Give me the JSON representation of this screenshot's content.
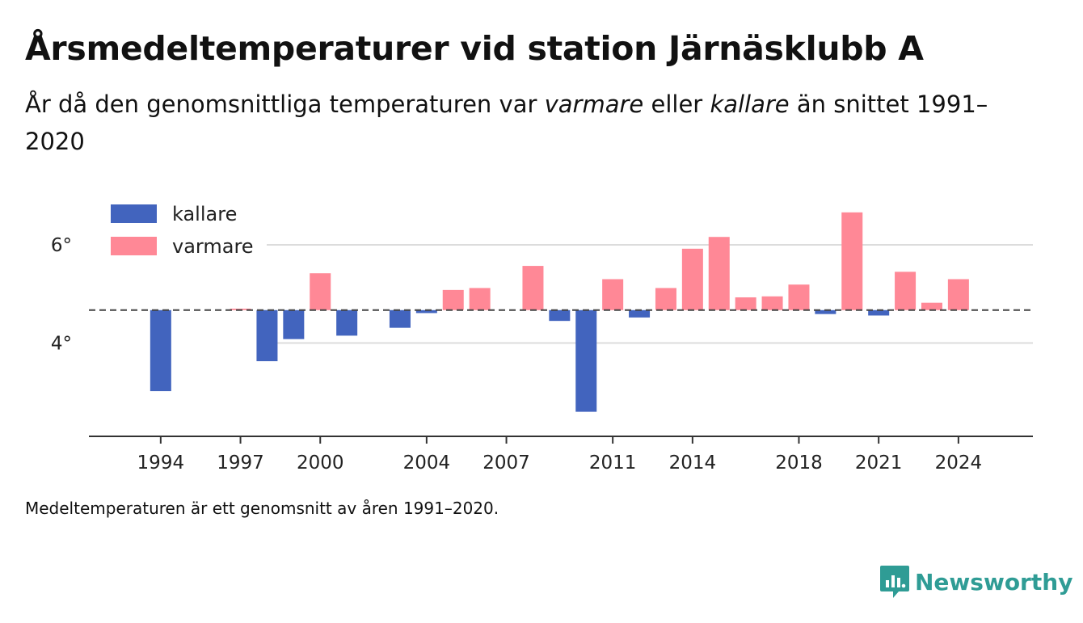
{
  "title": "Årsmedeltemperaturer vid station Järnäsklubb A",
  "subtitle": {
    "part1": "År då den genomsnittliga temperaturen var ",
    "warmer": "varmare",
    "part2": " eller ",
    "colder": "kallare",
    "part3": " än snittet 1991–2020"
  },
  "footnote": "Medeltemperaturen är ett genomsnitt av åren 1991–2020.",
  "brand": "Newsworthy",
  "colors": {
    "colder": "#4264be",
    "warmer": "#ff8896",
    "brand": "#2f9c95"
  },
  "chart_data": {
    "type": "bar",
    "baseline": 4.67,
    "baseline_style": "dashed",
    "ylim": [
      2.1,
      7.2
    ],
    "yticks": [
      4,
      6
    ],
    "ytick_labels": [
      "4°",
      "6°"
    ],
    "xlim": [
      1991.3,
      2026.8
    ],
    "xticks": [
      1994,
      1997,
      2000,
      2004,
      2007,
      2011,
      2014,
      2018,
      2021,
      2024
    ],
    "legend": {
      "position": "top-left",
      "entries": [
        {
          "label": "kallare",
          "color": "#4264be"
        },
        {
          "label": "varmare",
          "color": "#ff8896"
        }
      ]
    },
    "grid": "horizontal",
    "years": [
      1994,
      1997,
      1998,
      1999,
      2000,
      2001,
      2003,
      2004,
      2005,
      2006,
      2008,
      2009,
      2010,
      2011,
      2012,
      2013,
      2014,
      2015,
      2016,
      2017,
      2018,
      2019,
      2020,
      2021,
      2022,
      2023,
      2024
    ],
    "values": [
      3.02,
      4.7,
      3.63,
      4.08,
      5.42,
      4.15,
      4.31,
      4.61,
      5.08,
      5.12,
      5.57,
      4.45,
      2.6,
      5.3,
      4.52,
      5.12,
      5.92,
      6.16,
      4.93,
      4.95,
      5.19,
      4.59,
      6.66,
      4.56,
      5.45,
      4.82,
      5.3
    ]
  }
}
